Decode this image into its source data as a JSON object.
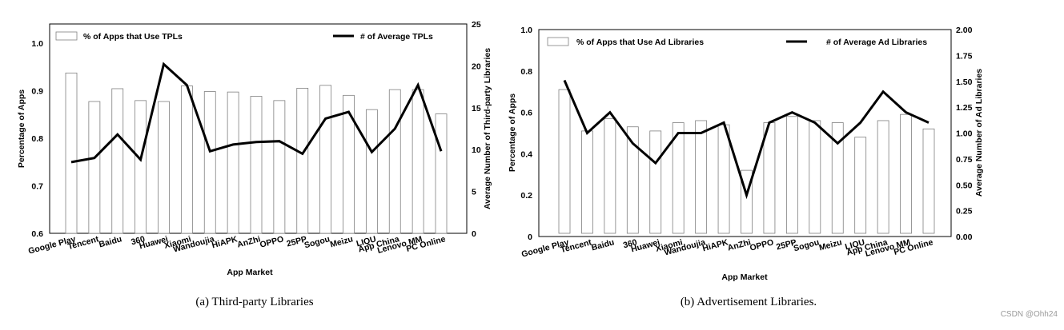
{
  "chart_data": [
    {
      "type": "bar+line",
      "caption": "(a)  Third-party Libraries",
      "xlabel": "App Market",
      "ylabel_left": "Percentage of Apps",
      "ylabel_right": "Average Number of Third-party Libraries",
      "left_ticks": [
        "0.6",
        "0.7",
        "0.8",
        "0.9",
        "1.0"
      ],
      "right_ticks": [
        "0",
        "5",
        "10",
        "15",
        "20",
        "25"
      ],
      "ylim_left": [
        0.6,
        1.04
      ],
      "ylim_right": [
        0,
        25
      ],
      "legend_bar": "% of Apps that Use TPLs",
      "legend_line": "# of Average TPLs",
      "categories": [
        "Google Play",
        "Tencent",
        "Baidu",
        "360",
        "Huawei",
        "Xiaomi",
        "Wandoujia",
        "HiAPK",
        "AnZhi",
        "OPPO",
        "25PP",
        "Sogou",
        "Meizu",
        "LIQU",
        "App China",
        "Lenovo MM",
        "PC Online"
      ],
      "bar_values": [
        0.937,
        0.877,
        0.904,
        0.879,
        0.877,
        0.91,
        0.898,
        0.897,
        0.888,
        0.879,
        0.905,
        0.911,
        0.89,
        0.86,
        0.902,
        0.902,
        0.851
      ],
      "line_values": [
        8.5,
        9,
        11.8,
        8.8,
        20.2,
        17.7,
        9.8,
        10.6,
        10.9,
        11,
        9.5,
        13.7,
        14.5,
        9.7,
        12.5,
        17.7,
        9.8
      ]
    },
    {
      "type": "bar+line",
      "caption": "(b)  Advertisement Libraries.",
      "xlabel": "App Market",
      "ylabel_left": "Percentage of Apps",
      "ylabel_right": "Average Number of Ad Libraries",
      "left_ticks": [
        "0",
        "0.2",
        "0.4",
        "0.6",
        "0.8",
        "1.0"
      ],
      "right_ticks": [
        "0.00",
        "0.25",
        "0.50",
        "0.75",
        "1.00",
        "1.25",
        "1.50",
        "1.75",
        "2.00"
      ],
      "ylim_left": [
        0,
        1.0
      ],
      "ylim_right": [
        0,
        2.0
      ],
      "legend_bar": "% of Apps that Use Ad Libraries",
      "legend_line": "# of Average Ad Libraries",
      "categories": [
        "Google Play",
        "Tencent",
        "Baidu",
        "360",
        "Huawei",
        "Xiaomi",
        "Wandoujia",
        "HiAPK",
        "AnZhi",
        "OPPO",
        "25PP",
        "Sogou",
        "Meizu",
        "LIQU",
        "App China",
        "Lenovo MM",
        "PC Online"
      ],
      "bar_values": [
        0.71,
        0.51,
        0.57,
        0.53,
        0.51,
        0.55,
        0.56,
        0.54,
        0.32,
        0.55,
        0.58,
        0.56,
        0.55,
        0.48,
        0.56,
        0.59,
        0.52
      ],
      "line_values": [
        1.51,
        1.0,
        1.2,
        0.9,
        0.71,
        1.0,
        1.0,
        1.1,
        0.4,
        1.1,
        1.2,
        1.1,
        0.9,
        1.1,
        1.4,
        1.2,
        1.1
      ]
    }
  ],
  "watermark": "CSDN @Ohh24"
}
